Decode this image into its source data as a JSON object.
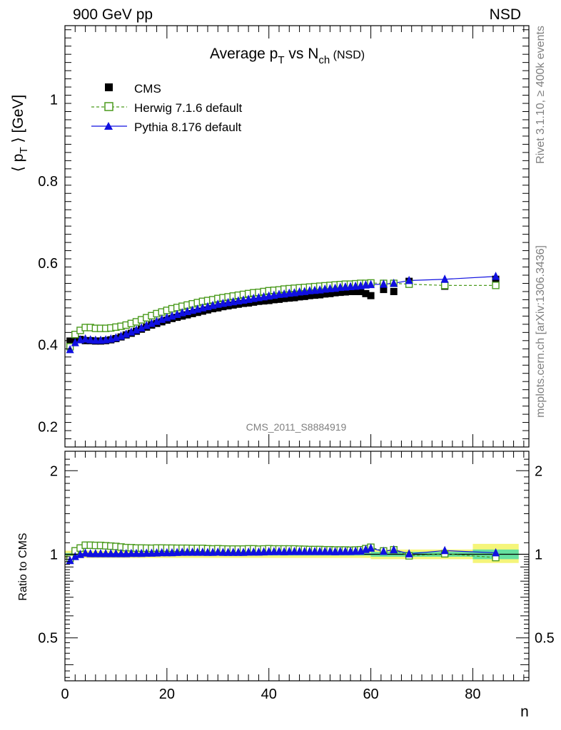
{
  "header": {
    "left": "900 GeV pp",
    "right": "NSD"
  },
  "side_labels": {
    "rivet": "Rivet 3.1.10, ≥ 400k events",
    "mcplots": "mcplots.cern.ch [arXiv:1306.3436]"
  },
  "watermark": "CMS_2011_S8884919",
  "title": {
    "main": "Average p",
    "sub1": "T",
    "mid": " vs N",
    "sub2": "ch",
    "tail": " (NSD)"
  },
  "ylabel": {
    "left": "⟨ p",
    "sub": "T",
    "right": " ⟩ [GeV]"
  },
  "xlabel": "n",
  "ratio_ylabel": "Ratio to CMS",
  "legend": [
    {
      "label": "CMS",
      "marker": "filled-square",
      "color": "#000000"
    },
    {
      "label": "Herwig 7.1.6 default",
      "marker": "open-square",
      "color": "#4a9a1c"
    },
    {
      "label": "Pythia 8.176 default",
      "marker": "filled-triangle",
      "color": "#1010e0"
    }
  ],
  "chart_data": [
    {
      "type": "scatter",
      "title": "Average pT vs Nch (NSD)",
      "xlabel": "n",
      "ylabel": "⟨ pT ⟩ [GeV]",
      "xlim": [
        0,
        91
      ],
      "ylim": [
        0.15,
        1.18
      ],
      "yticks": [
        0.2,
        0.4,
        0.6,
        0.8,
        1
      ],
      "xticks": [
        0,
        20,
        40,
        60,
        80
      ],
      "legend_position": "top-left",
      "x": [
        1,
        2,
        3,
        4,
        5,
        6,
        7,
        8,
        9,
        10,
        11,
        12,
        13,
        14,
        15,
        16,
        17,
        18,
        19,
        20,
        21,
        22,
        23,
        24,
        25,
        26,
        27,
        28,
        29,
        30,
        31,
        32,
        33,
        34,
        35,
        36,
        37,
        38,
        39,
        40,
        41,
        42,
        43,
        44,
        45,
        46,
        47,
        48,
        49,
        50,
        51,
        52,
        53,
        54,
        55,
        56,
        57,
        58,
        59,
        60,
        62.5,
        64.5,
        67.5,
        74.5,
        84.5
      ],
      "series": [
        {
          "name": "CMS",
          "values": [
            0.409,
            0.413,
            0.413,
            0.41,
            0.41,
            0.409,
            0.409,
            0.41,
            0.412,
            0.415,
            0.419,
            0.424,
            0.428,
            0.433,
            0.438,
            0.443,
            0.448,
            0.452,
            0.456,
            0.46,
            0.464,
            0.467,
            0.47,
            0.473,
            0.476,
            0.479,
            0.482,
            0.485,
            0.488,
            0.49,
            0.493,
            0.495,
            0.497,
            0.499,
            0.501,
            0.502,
            0.504,
            0.506,
            0.507,
            0.508,
            0.51,
            0.511,
            0.513,
            0.514,
            0.515,
            0.517,
            0.518,
            0.52,
            0.521,
            0.522,
            0.524,
            0.525,
            0.527,
            0.528,
            0.529,
            0.53,
            0.53,
            0.53,
            0.525,
            0.52,
            0.535,
            0.53,
            0.555,
            0.543,
            0.56
          ]
        },
        {
          "name": "Herwig 7.1.6 default",
          "values": [
            0.395,
            0.425,
            0.435,
            0.442,
            0.442,
            0.44,
            0.44,
            0.44,
            0.441,
            0.443,
            0.445,
            0.448,
            0.452,
            0.456,
            0.461,
            0.466,
            0.471,
            0.476,
            0.48,
            0.484,
            0.488,
            0.491,
            0.494,
            0.497,
            0.5,
            0.503,
            0.506,
            0.508,
            0.51,
            0.513,
            0.515,
            0.517,
            0.519,
            0.521,
            0.523,
            0.525,
            0.527,
            0.528,
            0.53,
            0.532,
            0.533,
            0.534,
            0.536,
            0.537,
            0.538,
            0.539,
            0.54,
            0.541,
            0.542,
            0.543,
            0.544,
            0.545,
            0.546,
            0.547,
            0.548,
            0.548,
            0.549,
            0.55,
            0.55,
            0.551,
            0.55,
            0.55,
            0.548,
            0.545,
            0.545
          ]
        },
        {
          "name": "Pythia 8.176 default",
          "values": [
            0.388,
            0.405,
            0.412,
            0.414,
            0.412,
            0.411,
            0.411,
            0.412,
            0.414,
            0.417,
            0.421,
            0.426,
            0.431,
            0.436,
            0.441,
            0.447,
            0.452,
            0.457,
            0.462,
            0.466,
            0.47,
            0.474,
            0.478,
            0.481,
            0.484,
            0.487,
            0.49,
            0.493,
            0.496,
            0.499,
            0.501,
            0.503,
            0.505,
            0.507,
            0.509,
            0.511,
            0.513,
            0.515,
            0.517,
            0.519,
            0.521,
            0.523,
            0.524,
            0.526,
            0.527,
            0.529,
            0.53,
            0.532,
            0.533,
            0.534,
            0.536,
            0.537,
            0.538,
            0.54,
            0.541,
            0.542,
            0.543,
            0.544,
            0.546,
            0.547,
            0.548,
            0.55,
            0.557,
            0.56,
            0.567
          ]
        }
      ]
    },
    {
      "type": "scatter",
      "title": "Ratio to CMS",
      "ylabel": "Ratio to CMS",
      "xlabel": "n",
      "xlim": [
        0,
        91
      ],
      "ylim": [
        0.35,
        2.35
      ],
      "yticks": [
        0.5,
        1,
        2
      ],
      "xticks": [
        0,
        20,
        40,
        60,
        80
      ],
      "log_y": true,
      "x": [
        1,
        2,
        3,
        4,
        5,
        6,
        7,
        8,
        9,
        10,
        11,
        12,
        13,
        14,
        15,
        16,
        17,
        18,
        19,
        20,
        21,
        22,
        23,
        24,
        25,
        26,
        27,
        28,
        29,
        30,
        31,
        32,
        33,
        34,
        35,
        36,
        37,
        38,
        39,
        40,
        41,
        42,
        43,
        44,
        45,
        46,
        47,
        48,
        49,
        50,
        51,
        52,
        53,
        54,
        55,
        56,
        57,
        58,
        59,
        60,
        62.5,
        64.5,
        67.5,
        74.5,
        84.5
      ],
      "bands": [
        {
          "name": "stat",
          "color": "#66e0a0",
          "x_ranges": [
            [
              0,
              60,
              0.99,
              1.01
            ],
            [
              60,
              80,
              0.98,
              1.02
            ],
            [
              80,
              89,
              0.96,
              1.04
            ]
          ]
        },
        {
          "name": "total",
          "color": "#f5f57a",
          "x_ranges": [
            [
              0,
              60,
              0.97,
              1.03
            ],
            [
              60,
              80,
              0.96,
              1.04
            ],
            [
              80,
              89,
              0.93,
              1.09
            ]
          ]
        }
      ],
      "series": [
        {
          "name": "Herwig 7.1.6 default",
          "values": [
            0.966,
            1.029,
            1.053,
            1.078,
            1.078,
            1.076,
            1.076,
            1.073,
            1.07,
            1.067,
            1.062,
            1.057,
            1.056,
            1.053,
            1.053,
            1.052,
            1.051,
            1.053,
            1.053,
            1.052,
            1.052,
            1.051,
            1.051,
            1.051,
            1.05,
            1.05,
            1.05,
            1.047,
            1.045,
            1.047,
            1.045,
            1.044,
            1.044,
            1.044,
            1.044,
            1.046,
            1.046,
            1.043,
            1.045,
            1.047,
            1.045,
            1.045,
            1.045,
            1.045,
            1.045,
            1.043,
            1.042,
            1.04,
            1.04,
            1.04,
            1.038,
            1.038,
            1.036,
            1.036,
            1.036,
            1.034,
            1.036,
            1.038,
            1.048,
            1.06,
            1.028,
            1.038,
            0.987,
            1.004,
            0.973
          ]
        },
        {
          "name": "Pythia 8.176 default",
          "values": [
            0.949,
            0.981,
            0.998,
            1.01,
            1.005,
            1.005,
            1.005,
            1.005,
            1.005,
            1.005,
            1.005,
            1.005,
            1.007,
            1.007,
            1.007,
            1.009,
            1.009,
            1.011,
            1.013,
            1.013,
            1.013,
            1.015,
            1.017,
            1.017,
            1.017,
            1.017,
            1.017,
            1.016,
            1.016,
            1.018,
            1.016,
            1.016,
            1.016,
            1.016,
            1.016,
            1.018,
            1.018,
            1.018,
            1.02,
            1.022,
            1.022,
            1.023,
            1.021,
            1.023,
            1.023,
            1.023,
            1.023,
            1.023,
            1.023,
            1.023,
            1.023,
            1.023,
            1.021,
            1.023,
            1.023,
            1.023,
            1.025,
            1.026,
            1.04,
            1.052,
            1.024,
            1.038,
            1.004,
            1.031,
            1.012
          ]
        }
      ]
    }
  ]
}
